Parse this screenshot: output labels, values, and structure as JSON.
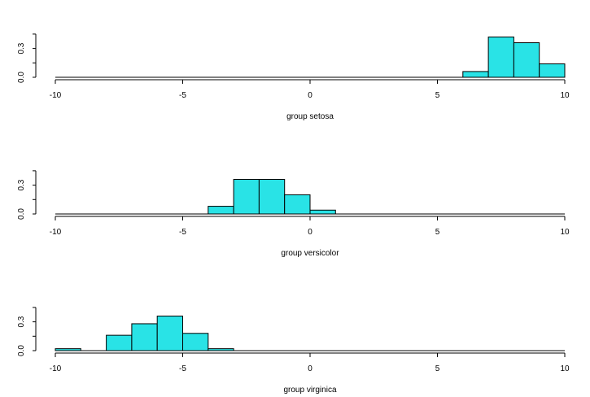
{
  "chart_data": [
    {
      "type": "bar",
      "title": "",
      "xlabel": "group setosa",
      "ylabel": "",
      "xlim": [
        -10,
        10
      ],
      "ylim": [
        0,
        0.45
      ],
      "x_ticks": [
        "-10",
        "-5",
        "0",
        "5",
        "10"
      ],
      "y_ticks": [
        "0.0",
        "0.3"
      ],
      "bin_edges": [
        6,
        7,
        8,
        9,
        10
      ],
      "values": [
        0.06,
        0.42,
        0.36,
        0.14
      ],
      "bar_color": "#29e3e6"
    },
    {
      "type": "bar",
      "title": "",
      "xlabel": "group versicolor",
      "ylabel": "",
      "xlim": [
        -10,
        10
      ],
      "ylim": [
        0,
        0.45
      ],
      "x_ticks": [
        "-10",
        "-5",
        "0",
        "5",
        "10"
      ],
      "y_ticks": [
        "0.0",
        "0.3"
      ],
      "bin_edges": [
        -4,
        -3,
        -2,
        -1,
        0,
        1
      ],
      "values": [
        0.08,
        0.36,
        0.36,
        0.2,
        0.04
      ],
      "bar_color": "#29e3e6"
    },
    {
      "type": "bar",
      "title": "",
      "xlabel": "group virginica",
      "ylabel": "",
      "xlim": [
        -10,
        10
      ],
      "ylim": [
        0,
        0.45
      ],
      "x_ticks": [
        "-10",
        "-5",
        "0",
        "5",
        "10"
      ],
      "y_ticks": [
        "0.0",
        "0.3"
      ],
      "bin_edges": [
        -10,
        -9,
        -8,
        -7,
        -6,
        -5,
        -4,
        -3
      ],
      "values": [
        0.02,
        0,
        0.16,
        0.28,
        0.36,
        0.18,
        0.02
      ],
      "bar_color": "#29e3e6"
    }
  ]
}
